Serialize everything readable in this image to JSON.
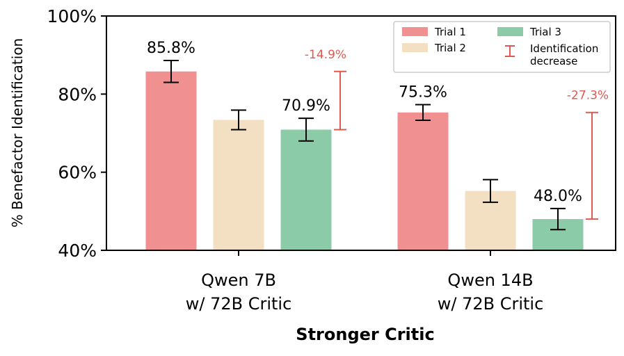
{
  "chart_data": {
    "type": "bar",
    "title": "",
    "xlabel": "Stronger Critic",
    "ylabel": "% Benefactor Identification",
    "ylim": [
      40,
      100
    ],
    "yticks": [
      40,
      60,
      80,
      100
    ],
    "ytick_labels": [
      "40%",
      "60%",
      "80%",
      "100%"
    ],
    "categories": [
      {
        "line1": "Qwen 7B",
        "line2": "w/ 72B Critic"
      },
      {
        "line1": "Qwen 14B",
        "line2": "w/ 72B Critic"
      }
    ],
    "series": [
      {
        "name": "Trial 1",
        "color": "#f09090",
        "values": [
          85.8,
          75.3
        ],
        "errors": [
          2.8,
          2.0
        ],
        "labels": [
          "85.8%",
          "75.3%"
        ]
      },
      {
        "name": "Trial 2",
        "color": "#f3dfc1",
        "values": [
          73.4,
          55.2
        ],
        "errors": [
          2.5,
          2.9
        ],
        "labels": [
          "",
          ""
        ]
      },
      {
        "name": "Trial 3",
        "color": "#8ccba8",
        "values": [
          70.9,
          48.0
        ],
        "errors": [
          2.9,
          2.7
        ],
        "labels": [
          "70.9%",
          "48.0%"
        ]
      }
    ],
    "decrease": {
      "legend_line1": "Identification",
      "legend_line2": "decrease",
      "color": "#dc5a50",
      "items": [
        {
          "from": 85.8,
          "to": 70.9,
          "label": "-14.9%"
        },
        {
          "from": 75.3,
          "to": 48.0,
          "label": "-27.3%"
        }
      ]
    },
    "legend_position": "top-right"
  }
}
